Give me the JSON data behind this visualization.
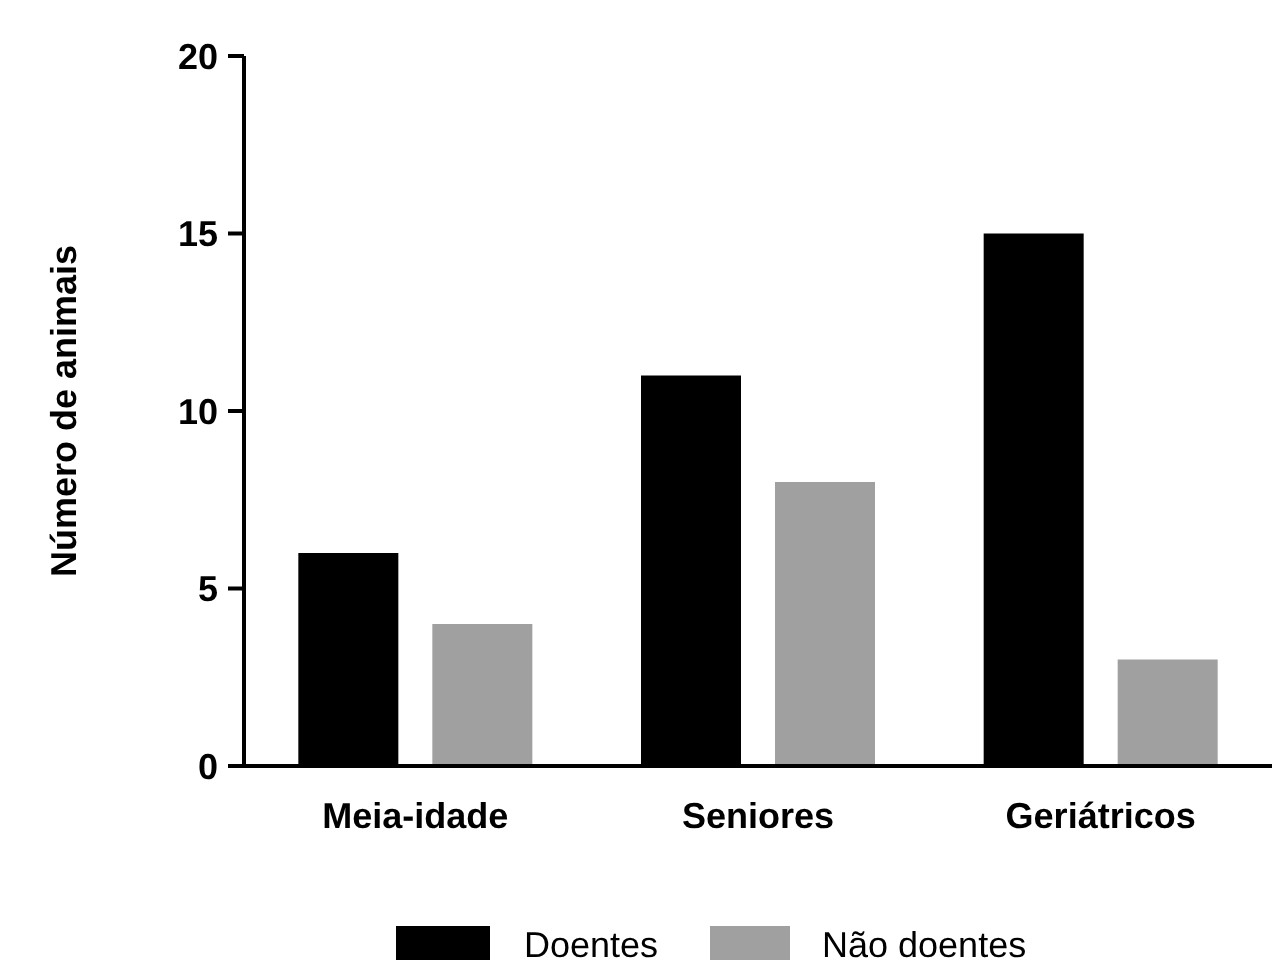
{
  "chart_data": {
    "type": "bar",
    "ylabel": "Número de animais",
    "categories": [
      "Meia-idade",
      "Seniores",
      "Geriátricos"
    ],
    "series": [
      {
        "name": "Doentes",
        "color": "#000000",
        "values": [
          6,
          11,
          15
        ]
      },
      {
        "name": "Não doentes",
        "color": "#a0a0a0",
        "values": [
          4,
          8,
          3
        ]
      }
    ],
    "ylim": [
      0,
      20
    ],
    "yticks": [
      0,
      5,
      10,
      15,
      20
    ],
    "grid": false,
    "legend": "bottom"
  }
}
